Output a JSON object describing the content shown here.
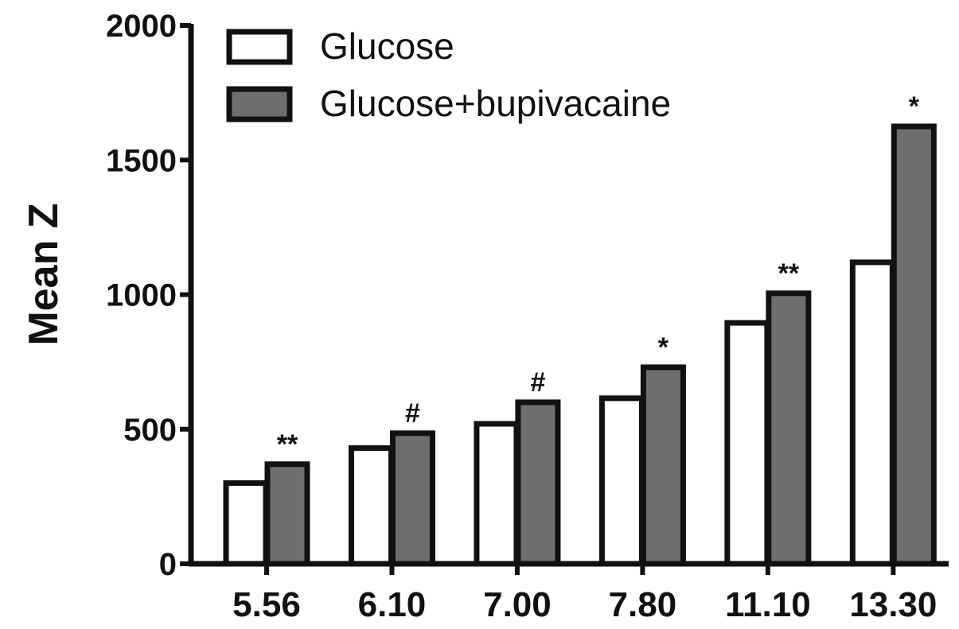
{
  "chart_data": {
    "type": "bar",
    "title": "",
    "xlabel": "",
    "ylabel": "Mean Z",
    "ylim": [
      0,
      2000
    ],
    "yticks": [
      0,
      500,
      1000,
      1500,
      2000
    ],
    "categories": [
      "5.56",
      "6.10",
      "7.00",
      "7.80",
      "11.10",
      "13.30"
    ],
    "series": [
      {
        "name": "Glucose",
        "color": "#ffffff",
        "values": [
          300,
          430,
          520,
          615,
          895,
          1120
        ]
      },
      {
        "name": "Glucose+bupivacaine",
        "color": "#6e6e6e",
        "values": [
          370,
          485,
          600,
          730,
          1005,
          1625
        ]
      }
    ],
    "annotations": [
      "**",
      "#",
      "#",
      "*",
      "**",
      "*"
    ],
    "grid": false,
    "legend_position": "top-left"
  }
}
